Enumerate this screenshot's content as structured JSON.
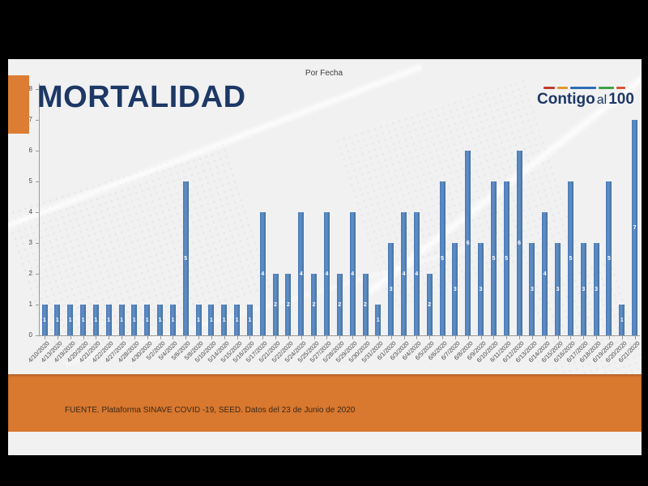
{
  "slide": {
    "headline": "MORTALIDAD",
    "footer": {
      "source": "FUENTE.  Plataforma SINAVE COVID -19, SEED. Datos del 23 de Junio de 2020"
    },
    "logo": {
      "word1": "Contigo",
      "word2": "al",
      "word3": "100",
      "dash_colors": [
        "#c13b33",
        "#e2972f",
        "#2d6cb4",
        "#3fa048",
        "#d9542f"
      ]
    },
    "colors": {
      "accent_orange": "#dd7c33",
      "footer_orange": "#d9782f",
      "headline_navy": "#1d3865",
      "bar_blue": "#4f81bd",
      "background_gray": "#f1f1f2",
      "frame_black": "#000000"
    }
  },
  "chart_data": {
    "type": "bar",
    "title": "Por Fecha",
    "categories": [
      "4/10/2020",
      "4/13/2020",
      "4/19/2020",
      "4/20/2020",
      "4/21/2020",
      "4/22/2020",
      "4/27/2020",
      "4/28/2020",
      "4/30/2020",
      "5/2/2020",
      "5/4/2020",
      "5/6/2020",
      "5/8/2020",
      "5/10/2020",
      "5/14/2020",
      "5/15/2020",
      "5/16/2020",
      "5/17/2020",
      "5/21/2020",
      "5/22/2020",
      "5/24/2020",
      "5/25/2020",
      "5/27/2020",
      "5/28/2020",
      "5/29/2020",
      "5/30/2020",
      "5/31/2020",
      "6/1/2020",
      "6/3/2020",
      "6/4/2020",
      "6/5/2020",
      "6/6/2020",
      "6/7/2020",
      "6/8/2020",
      "6/9/2020",
      "6/10/2020",
      "6/11/2020",
      "6/12/2020",
      "6/13/2020",
      "6/14/2020",
      "6/15/2020",
      "6/16/2020",
      "6/17/2020",
      "6/18/2020",
      "6/19/2020",
      "6/20/2020",
      "6/21/2020"
    ],
    "values": [
      1,
      1,
      1,
      1,
      1,
      1,
      1,
      1,
      1,
      1,
      1,
      5,
      1,
      1,
      1,
      1,
      1,
      4,
      2,
      2,
      4,
      2,
      4,
      2,
      4,
      2,
      1,
      3,
      4,
      4,
      2,
      5,
      3,
      6,
      3,
      5,
      5,
      6,
      3,
      4,
      3,
      5,
      3,
      3,
      5,
      1,
      7
    ],
    "xlabel": "",
    "ylabel": "",
    "ylim": [
      0,
      8
    ],
    "yticks": [
      0,
      1,
      2,
      3,
      4,
      5,
      6,
      7,
      8
    ],
    "grid": false,
    "legend": "none",
    "value_label_color": "#ffffff"
  }
}
